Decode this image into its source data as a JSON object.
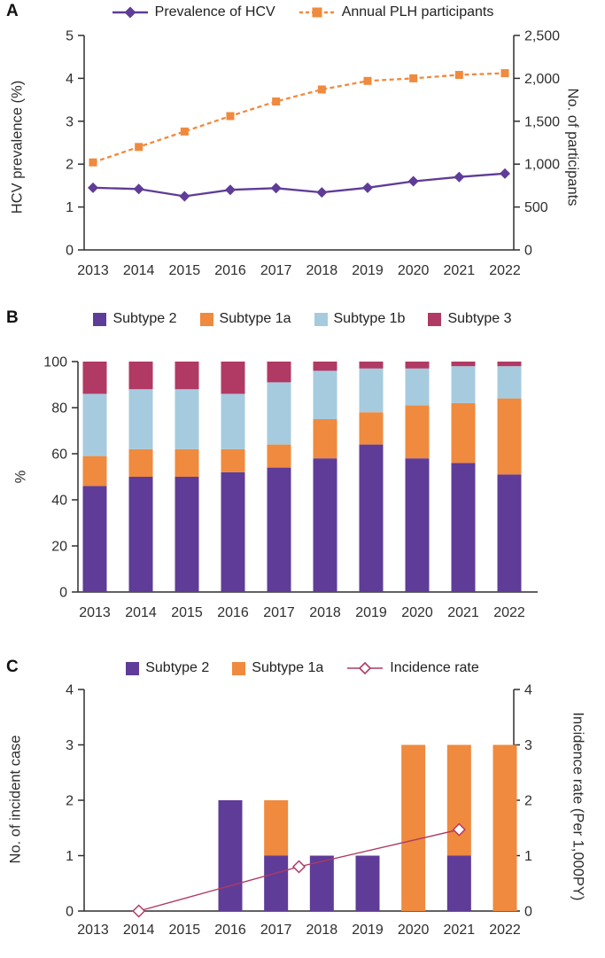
{
  "colors": {
    "purple": "#5f3c97",
    "orange": "#ef8a3e",
    "lightblue": "#a6cbdf",
    "maroon": "#b03a64",
    "axis": "#2e2e2e",
    "text": "#2e2e2e",
    "background": "#ffffff",
    "marker_fill_open": "#ffffff"
  },
  "panels": [
    {
      "label": "A"
    },
    {
      "label": "B"
    },
    {
      "label": "C"
    }
  ],
  "chart_data": [
    {
      "panel": "A",
      "type": "line",
      "x": [
        "2013",
        "2014",
        "2015",
        "2016",
        "2017",
        "2018",
        "2019",
        "2020",
        "2021",
        "2022"
      ],
      "left_axis": {
        "label": "HCV prevalence (%)",
        "min": 0,
        "max": 5,
        "ticks": [
          0,
          1,
          2,
          3,
          4,
          5
        ]
      },
      "right_axis": {
        "label": "No. of participants",
        "min": 0,
        "max": 2500,
        "ticks": [
          0,
          500,
          1000,
          1500,
          2000,
          2500
        ]
      },
      "grid": false,
      "legend_position": "top",
      "series": [
        {
          "name": "Prevalence of HCV",
          "axis": "left",
          "color": "purple",
          "marker": "diamond",
          "line": "solid",
          "values": [
            1.45,
            1.42,
            1.25,
            1.4,
            1.44,
            1.34,
            1.45,
            1.6,
            1.7,
            1.78
          ]
        },
        {
          "name": "Annual PLH participants",
          "axis": "right",
          "color": "orange",
          "marker": "square",
          "line": "dashed",
          "values": [
            1020,
            1200,
            1380,
            1560,
            1730,
            1870,
            1970,
            2000,
            2040,
            2060
          ]
        }
      ]
    },
    {
      "panel": "B",
      "type": "bar",
      "stacked": true,
      "x": [
        "2013",
        "2014",
        "2015",
        "2016",
        "2017",
        "2018",
        "2019",
        "2020",
        "2021",
        "2022"
      ],
      "left_axis": {
        "label": "%",
        "min": 0,
        "max": 100,
        "ticks": [
          0,
          20,
          40,
          60,
          80,
          100
        ]
      },
      "grid": false,
      "legend_position": "top",
      "series": [
        {
          "name": "Subtype 2",
          "color": "purple",
          "values": [
            46,
            50,
            50,
            52,
            54,
            58,
            64,
            58,
            56,
            51
          ]
        },
        {
          "name": "Subtype 1a",
          "color": "orange",
          "values": [
            13,
            12,
            12,
            10,
            10,
            17,
            14,
            23,
            26,
            33
          ]
        },
        {
          "name": "Subtype 1b",
          "color": "lightblue",
          "values": [
            27,
            26,
            26,
            24,
            27,
            21,
            19,
            16,
            16,
            14
          ]
        },
        {
          "name": "Subtype 3",
          "color": "maroon",
          "values": [
            14,
            12,
            12,
            14,
            9,
            4,
            3,
            3,
            2,
            2
          ]
        }
      ]
    },
    {
      "panel": "C",
      "type": "bar+line",
      "stacked": true,
      "x": [
        "2013",
        "2014",
        "2015",
        "2016",
        "2017",
        "2018",
        "2019",
        "2020",
        "2021",
        "2022"
      ],
      "left_axis": {
        "label": "No. of incident case",
        "min": 0,
        "max": 4,
        "ticks": [
          0,
          1,
          2,
          3,
          4
        ]
      },
      "right_axis": {
        "label": "Incidence rate (Per 1,000PY)",
        "min": 0,
        "max": 4,
        "ticks": [
          0,
          1,
          2,
          3,
          4
        ]
      },
      "grid": false,
      "legend_position": "top",
      "series": [
        {
          "name": "Subtype 2",
          "color": "purple",
          "values": [
            0,
            0,
            0,
            2,
            1,
            1,
            1,
            0,
            1,
            0
          ]
        },
        {
          "name": "Subtype 1a",
          "color": "orange",
          "values": [
            0,
            0,
            0,
            0,
            1,
            0,
            0,
            3,
            2,
            3
          ]
        }
      ],
      "line": {
        "name": "Incidence rate",
        "color": "maroon",
        "marker": "open-diamond",
        "axis": "right",
        "points": [
          {
            "year": 2014,
            "value": 0
          },
          {
            "year": 2017.5,
            "value": 0.8
          },
          {
            "year": 2021,
            "value": 1.47
          }
        ]
      }
    }
  ]
}
